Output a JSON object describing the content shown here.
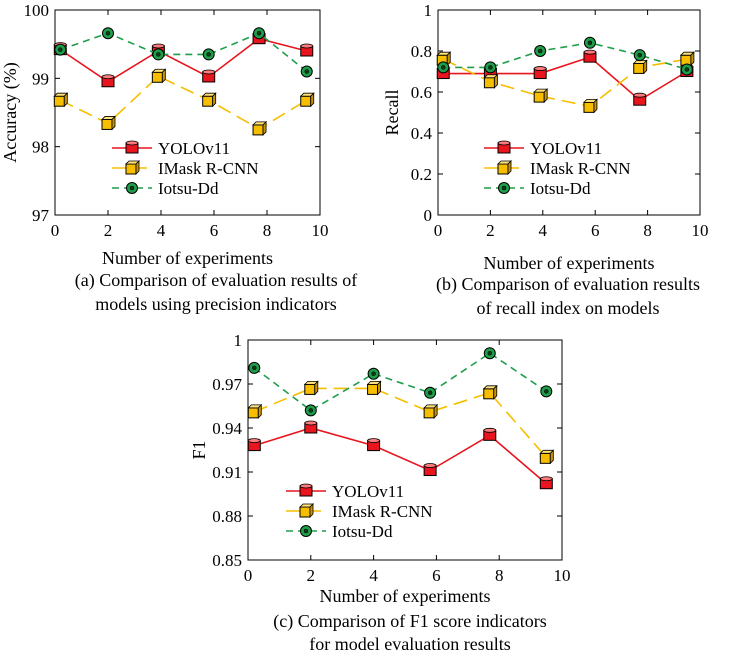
{
  "styles": {
    "YOLOv11": {
      "color": "#e8141e",
      "dash": "",
      "marker": "bar-red"
    },
    "IMask R-CNN": {
      "color": "#f7be00",
      "dash": "14,7",
      "marker": "cube"
    },
    "Iotsu-Dd": {
      "color": "#1f9e4a",
      "dash": "7,5",
      "marker": "ring"
    }
  },
  "chart_data": [
    {
      "type": "line",
      "id": "a",
      "xlabel": "Number of experiments",
      "ylabel": "Accuracy (%)",
      "xlim": [
        0,
        10
      ],
      "ylim": [
        97,
        100
      ],
      "xticks": [
        0,
        2,
        4,
        6,
        8,
        10
      ],
      "yticks": [
        97,
        98,
        99,
        100
      ],
      "ytick_labels": [
        "97",
        "98",
        "99",
        "100"
      ],
      "x": [
        0.2,
        2,
        3.9,
        5.8,
        7.7,
        9.5
      ],
      "series": [
        {
          "name": "YOLOv11",
          "values": [
            99.42,
            98.95,
            99.4,
            99.02,
            99.58,
            99.4
          ]
        },
        {
          "name": "IMask R-CNN",
          "values": [
            98.68,
            98.34,
            99.03,
            98.68,
            98.26,
            98.68
          ]
        },
        {
          "name": "Iotsu-Dd",
          "values": [
            99.42,
            99.66,
            99.35,
            99.35,
            99.66,
            99.1
          ]
        }
      ],
      "legend": [
        "YOLOv11",
        "IMask R-CNN",
        "Iotsu-Dd"
      ],
      "caption": [
        "(a) Comparison of evaluation results of",
        "models using precision indicators"
      ]
    },
    {
      "type": "line",
      "id": "b",
      "xlabel": "Number of experiments",
      "ylabel": "Recall",
      "xlim": [
        0,
        10
      ],
      "ylim": [
        0,
        1
      ],
      "xticks": [
        0,
        2,
        4,
        6,
        8,
        10
      ],
      "yticks": [
        0,
        0.2,
        0.4,
        0.6,
        0.8,
        1
      ],
      "ytick_labels": [
        "0",
        "0.2",
        "0.4",
        "0.6",
        "0.8",
        "1"
      ],
      "x": [
        0.2,
        2,
        3.9,
        5.8,
        7.7,
        9.5
      ],
      "series": [
        {
          "name": "YOLOv11",
          "values": [
            0.69,
            0.69,
            0.69,
            0.77,
            0.56,
            0.7
          ]
        },
        {
          "name": "IMask R-CNN",
          "values": [
            0.76,
            0.65,
            0.58,
            0.53,
            0.72,
            0.76
          ]
        },
        {
          "name": "Iotsu-Dd",
          "values": [
            0.72,
            0.72,
            0.8,
            0.84,
            0.78,
            0.71
          ]
        }
      ],
      "legend": [
        "YOLOv11",
        "IMask R-CNN",
        "Iotsu-Dd"
      ],
      "caption": [
        "(b) Comparison of evaluation results",
        "of recall index on models"
      ]
    },
    {
      "type": "line",
      "id": "c",
      "xlabel": "Number of experiments",
      "ylabel": "F1",
      "xlim": [
        0,
        10
      ],
      "ylim": [
        0.85,
        1
      ],
      "xticks": [
        0,
        2,
        4,
        6,
        8,
        10
      ],
      "yticks": [
        0.85,
        0.88,
        0.91,
        0.94,
        0.97,
        1
      ],
      "ytick_labels": [
        "0.85",
        "0.88",
        "0.91",
        "0.94",
        "0.97",
        "1"
      ],
      "x": [
        0.2,
        2,
        4,
        5.8,
        7.7,
        9.5
      ],
      "series": [
        {
          "name": "YOLOv11",
          "values": [
            0.928,
            0.94,
            0.928,
            0.911,
            0.935,
            0.902
          ]
        },
        {
          "name": "IMask R-CNN",
          "values": [
            0.951,
            0.967,
            0.967,
            0.951,
            0.964,
            0.92
          ]
        },
        {
          "name": "Iotsu-Dd",
          "values": [
            0.981,
            0.952,
            0.977,
            0.964,
            0.991,
            0.965
          ]
        }
      ],
      "legend": [
        "YOLOv11",
        "IMask R-CNN",
        "Iotsu-Dd"
      ],
      "caption": [
        "(c) Comparison of F1 score indicators",
        "for model evaluation results"
      ]
    }
  ]
}
